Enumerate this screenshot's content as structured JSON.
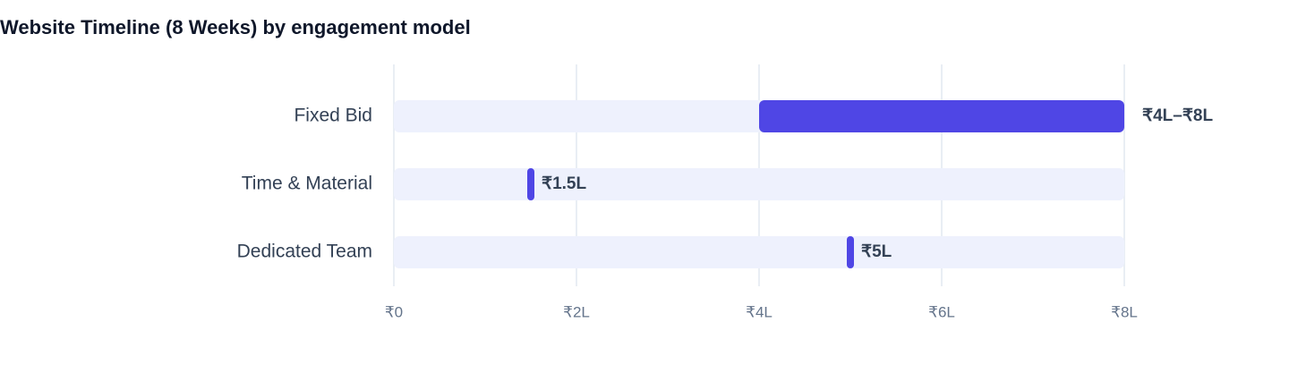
{
  "chart_data": {
    "type": "range_bar",
    "title": "Website Timeline (8 Weeks) by engagement model",
    "categories": [
      "Fixed Bid",
      "Time & Material",
      "Dedicated Team"
    ],
    "values": [
      [
        4,
        8
      ],
      [
        1.5
      ],
      [
        5
      ]
    ],
    "value_labels": [
      "₹4L–₹8L",
      "₹1.5L",
      "₹5L"
    ],
    "color": "#4f46e5",
    "track_color": "#eef1fd",
    "xlim": [
      0,
      8
    ],
    "xticks": [
      {
        "value": 0,
        "label": "₹0"
      },
      {
        "value": 2,
        "label": "₹2L"
      },
      {
        "value": 4,
        "label": "₹4L"
      },
      {
        "value": 6,
        "label": "₹6L"
      },
      {
        "value": 8,
        "label": "₹8L"
      }
    ],
    "grid": true
  }
}
